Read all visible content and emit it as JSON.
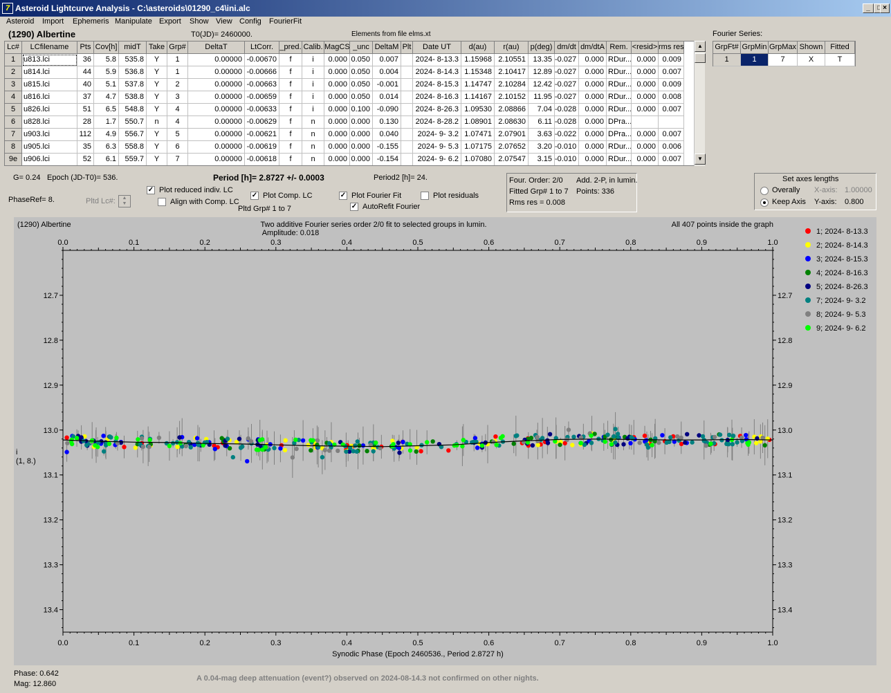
{
  "window": {
    "title": "Asteroid Lightcurve Analysis - C:\\asteroids\\01290_c4\\ini.alc",
    "min": "_",
    "max": "□",
    "close": "×",
    "icon": "7"
  },
  "menu": [
    "Asteroid",
    "Import",
    "Ephemeris",
    "Manipulate",
    "Export",
    "Show",
    "View",
    "Config",
    "FourierFit"
  ],
  "asteroid": {
    "name": "(1290) Albertine",
    "t0": "T0(JD)= 2460000.",
    "elements": "Elements from file elms.xt"
  },
  "grid": {
    "headers": [
      "Lc#",
      "LCfilename",
      "Pts",
      "Cov[h]",
      "midT",
      "Take",
      "Grp#",
      "DeltaT",
      "LtCorr.",
      "_pred.",
      "Calib.",
      "MagCS",
      "_unc",
      "DeltaM",
      "Plt",
      "Date UT",
      "d(au)",
      "r(au)",
      "p(deg)",
      "dm/dt",
      "dm/dtA",
      "Rem.",
      "<resid>",
      "rms res"
    ],
    "rows": [
      [
        "1",
        "u813.lci",
        "36",
        "5.8",
        "535.8",
        "Y",
        "1",
        "0.00000",
        "-0.00670",
        "f",
        "i",
        "0.000",
        "0.050",
        "0.007",
        "",
        "2024- 8-13.3",
        "1.15968",
        "2.10551",
        "13.35",
        "-0.027",
        "0.000",
        "RDur...",
        "0.000",
        "0.009"
      ],
      [
        "2",
        "u814.lci",
        "44",
        "5.9",
        "536.8",
        "Y",
        "1",
        "0.00000",
        "-0.00666",
        "f",
        "i",
        "0.000",
        "0.050",
        "0.004",
        "",
        "2024- 8-14.3",
        "1.15348",
        "2.10417",
        "12.89",
        "-0.027",
        "0.000",
        "RDur...",
        "0.000",
        "0.007"
      ],
      [
        "3",
        "u815.lci",
        "40",
        "5.1",
        "537.8",
        "Y",
        "2",
        "0.00000",
        "-0.00663",
        "f",
        "i",
        "0.000",
        "0.050",
        "-0.001",
        "",
        "2024- 8-15.3",
        "1.14747",
        "2.10284",
        "12.42",
        "-0.027",
        "0.000",
        "RDur...",
        "0.000",
        "0.009"
      ],
      [
        "4",
        "u816.lci",
        "37",
        "4.7",
        "538.8",
        "Y",
        "3",
        "0.00000",
        "-0.00659",
        "f",
        "i",
        "0.000",
        "0.050",
        "0.014",
        "",
        "2024- 8-16.3",
        "1.14167",
        "2.10152",
        "11.95",
        "-0.027",
        "0.000",
        "RDur...",
        "0.000",
        "0.008"
      ],
      [
        "5",
        "u826.lci",
        "51",
        "6.5",
        "548.8",
        "Y",
        "4",
        "0.00000",
        "-0.00633",
        "f",
        "i",
        "0.000",
        "0.100",
        "-0.090",
        "",
        "2024- 8-26.3",
        "1.09530",
        "2.08866",
        "7.04",
        "-0.028",
        "0.000",
        "RDur...",
        "0.000",
        "0.007"
      ],
      [
        "6",
        "u828.lci",
        "28",
        "1.7",
        "550.7",
        "n",
        "4",
        "0.00000",
        "-0.00629",
        "f",
        "n",
        "0.000",
        "0.000",
        "0.130",
        "",
        "2024- 8-28.2",
        "1.08901",
        "2.08630",
        "6.11",
        "-0.028",
        "0.000",
        "DPra...",
        "",
        ""
      ],
      [
        "7",
        "u903.lci",
        "112",
        "4.9",
        "556.7",
        "Y",
        "5",
        "0.00000",
        "-0.00621",
        "f",
        "n",
        "0.000",
        "0.000",
        "0.040",
        "",
        "2024- 9- 3.2",
        "1.07471",
        "2.07901",
        "3.63",
        "-0.022",
        "0.000",
        "DPra...",
        "0.000",
        "0.007"
      ],
      [
        "8",
        "u905.lci",
        "35",
        "6.3",
        "558.8",
        "Y",
        "6",
        "0.00000",
        "-0.00619",
        "f",
        "n",
        "0.000",
        "0.000",
        "-0.155",
        "",
        "2024- 9- 5.3",
        "1.07175",
        "2.07652",
        "3.20",
        "-0.010",
        "0.000",
        "RDur...",
        "0.000",
        "0.006"
      ],
      [
        "9e",
        "u906.lci",
        "52",
        "6.1",
        "559.7",
        "Y",
        "7",
        "0.00000",
        "-0.00618",
        "f",
        "n",
        "0.000",
        "0.000",
        "-0.154",
        "",
        "2024- 9- 6.2",
        "1.07080",
        "2.07547",
        "3.15",
        "-0.010",
        "0.000",
        "RDur...",
        "0.000",
        "0.007"
      ]
    ]
  },
  "fourier": {
    "label": "Fourier Series:",
    "headers": [
      "GrpFt#",
      "GrpMin",
      "GrpMax",
      "Shown",
      "Fitted"
    ],
    "row": [
      "1",
      "1",
      "7",
      "X",
      "T"
    ]
  },
  "controls": {
    "g": "G= 0.24",
    "epoch": "Epoch (JD-T0)= 536.",
    "phaseref": "PhaseRef= 8.",
    "pltdlc": "Pltd Lc#:",
    "cb_reduced": "Plot reduced indiv. LC",
    "cb_align": "Align with Comp. LC",
    "cb_comp": "Plot Comp. LC",
    "pltd_grp": "Pltd Grp#  1   to   7",
    "cb_fourier": "Plot Fourier Fit",
    "cb_autorefit": "AutoRefit Fourier",
    "cb_resid": "Plot residuals",
    "period": "Period [h]= 2.8727 +/- 0.0003",
    "period2": "Period2 [h]= 24.",
    "check": "✓"
  },
  "fitinfo": {
    "order": "Four. Order:  2/0",
    "add": "Add. 2-P, in lumin.",
    "fitted": "Fitted Grp# 1 to 7",
    "points": "Points: 336",
    "rms": "Rms res     = 0.008"
  },
  "axes": {
    "title": "Set axes lengths",
    "overall": "Overally",
    "keep": "Keep Axis",
    "xaxis": "X-axis:",
    "xval": "1.00000",
    "yaxis": "Y-axis:",
    "yval": "0.800"
  },
  "plot": {
    "left_title": "(1290) Albertine",
    "center_title": "Two additive Fourier series order 2/0 fit to selected groups in lumin.",
    "amplitude": "Amplitude: 0.018",
    "right_title": "All 407 points inside the graph",
    "xlabel": "Synodic Phase (Epoch 2460536., Period 2.8727 h)",
    "ylabel1": "i",
    "ylabel2": "(1, 8.)"
  },
  "chart_data": {
    "type": "scatter",
    "xlim": [
      0,
      1
    ],
    "ylim": [
      12.6,
      13.45
    ],
    "xticks": [
      "0.0",
      "0.1",
      "0.2",
      "0.3",
      "0.4",
      "0.5",
      "0.6",
      "0.7",
      "0.8",
      "0.9",
      "1.0"
    ],
    "yticks": [
      "12.7",
      "12.8",
      "12.9",
      "13.0",
      "13.1",
      "13.2",
      "13.3",
      "13.4"
    ],
    "legend": [
      {
        "name": "1; 2024- 8-13.3",
        "color": "#ff0000"
      },
      {
        "name": "2; 2024- 8-14.3",
        "color": "#ffff00"
      },
      {
        "name": "3; 2024- 8-15.3",
        "color": "#0000ff"
      },
      {
        "name": "4; 2024- 8-16.3",
        "color": "#008000"
      },
      {
        "name": "5; 2024- 8-26.3",
        "color": "#000080"
      },
      {
        "name": "7; 2024- 9- 3.2",
        "color": "#008080"
      },
      {
        "name": "8; 2024- 9- 5.3",
        "color": "#808080"
      },
      {
        "name": "9; 2024- 9- 6.2",
        "color": "#00ff00"
      }
    ],
    "fit": {
      "x": [
        0,
        0.05,
        0.1,
        0.15,
        0.2,
        0.25,
        0.3,
        0.35,
        0.4,
        0.45,
        0.5,
        0.55,
        0.6,
        0.65,
        0.7,
        0.75,
        0.8,
        0.85,
        0.9,
        0.95,
        1.0
      ],
      "y": [
        13.022,
        13.025,
        13.027,
        13.028,
        13.03,
        13.031,
        13.033,
        13.035,
        13.036,
        13.037,
        13.035,
        13.033,
        13.028,
        13.024,
        13.021,
        13.02,
        13.021,
        13.022,
        13.022,
        13.021,
        13.022
      ]
    },
    "points_total": 407
  },
  "status": {
    "phase": "Phase:  0.642",
    "mag": "Mag:    12.860",
    "message": "A 0.04-mag deep attenuation (event?) observed on 2024-08-14.3 not confirmed  on other nights."
  }
}
